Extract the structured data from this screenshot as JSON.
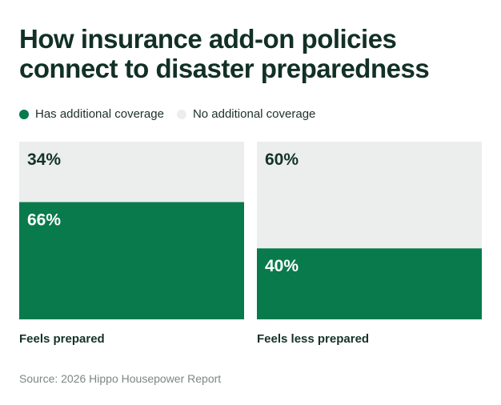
{
  "chart_data": {
    "type": "stacked-bar",
    "title": "How insurance add-on policies connect to disaster preparedness",
    "categories": [
      "Feels prepared",
      "Feels less prepared"
    ],
    "series": [
      {
        "name": "Has additional coverage",
        "values": [
          66,
          40
        ],
        "labels": [
          "66%",
          "40%"
        ],
        "color": "#087a4b"
      },
      {
        "name": "No additional coverage",
        "values": [
          34,
          60
        ],
        "labels": [
          "34%",
          "60%"
        ],
        "color": "#ebeeed"
      }
    ],
    "ylim": [
      0,
      100
    ],
    "legend": "top-left",
    "grid": false
  },
  "source": "Source: 2026 Hippo Housepower Report"
}
